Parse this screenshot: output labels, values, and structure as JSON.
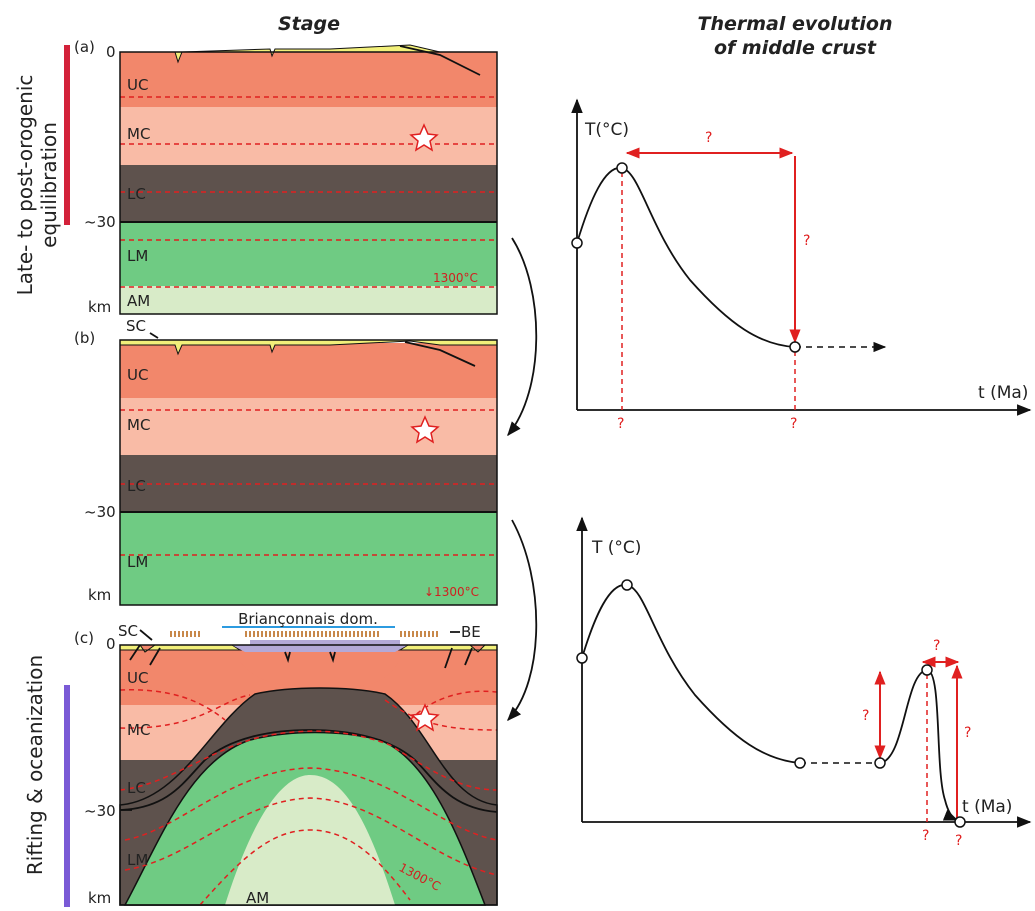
{
  "headers": {
    "stage": "Stage",
    "thermal_evolution": [
      "Thermal evolution",
      "of middle crust"
    ]
  },
  "phases": {
    "equilibration": [
      "Late- to post-orogenic",
      "equilibration"
    ],
    "rifting": "Rifting & oceanization"
  },
  "panels": [
    {
      "label": "(a)",
      "depth_top": "0",
      "depth_moho": "~30",
      "depth_unit": "km",
      "layers": [
        "UC",
        "MC",
        "LC",
        "LM",
        "AM"
      ],
      "isotherm": "1300°C"
    },
    {
      "label": "(b)",
      "depth_moho": "~30",
      "depth_unit": "km",
      "layers": [
        "UC",
        "MC",
        "LC",
        "LM"
      ],
      "isotherm": "↓1300°C",
      "suture": "SC"
    },
    {
      "label": "(c)",
      "depth_top": "0",
      "depth_moho": "~30",
      "depth_unit": "km",
      "layers": [
        "UC",
        "MC",
        "LC",
        "LM",
        "AM"
      ],
      "isotherm": "1300°C",
      "suture": "SC",
      "margin": "BE",
      "domain": "Briançonnais dom."
    }
  ],
  "graphs": [
    {
      "y_axis": "T(°C)",
      "x_axis": "t (Ma)",
      "unknowns": [
        "?",
        "?",
        "?",
        "?"
      ]
    },
    {
      "y_axis": "T (°C)",
      "x_axis": "t (Ma)",
      "unknowns": [
        "?",
        "?",
        "?",
        "?",
        "?"
      ]
    }
  ]
}
